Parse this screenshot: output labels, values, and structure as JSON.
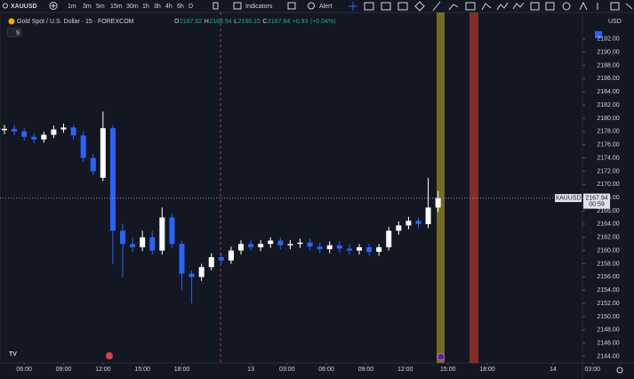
{
  "toolbar": {
    "symbol": "XAUUSD",
    "intervals": [
      "1m",
      "3m",
      "5m",
      "15m",
      "30m",
      "1h",
      "3h",
      "4h",
      "6h",
      "D"
    ],
    "indicators": "Indicators",
    "alert": "Alert"
  },
  "chart_data": {
    "type": "candlestick",
    "title": "Gold Spot / U.S. Dollar · 15 · FOREXCOM",
    "ohlc_legend": {
      "o_label": "O",
      "open": 2167.02,
      "h_label": "H",
      "high": 2168.94,
      "l_label": "L",
      "low": 2166.15,
      "c_label": "C",
      "close": 2167.94,
      "change": "+0.93",
      "change_pct": "(+0.04%)"
    },
    "indicator_count": 9,
    "currency": "USD",
    "last_price": {
      "symbol": "XAUUSD",
      "value": 2167.94,
      "countdown": "00:59"
    },
    "up_color": "#ffffff",
    "down_color": "#2962ff",
    "x": [
      0,
      3,
      6,
      9,
      12,
      15,
      18,
      21,
      24,
      27,
      30,
      33,
      36,
      39,
      42,
      45,
      48,
      51,
      54,
      57,
      60,
      63,
      66,
      69,
      72,
      75,
      78,
      81,
      84,
      87,
      90,
      93,
      96,
      99,
      102,
      105,
      108,
      111,
      114,
      117,
      120,
      123,
      126,
      129,
      132
    ],
    "open": [
      2178.2,
      2178.4,
      2178,
      2177.2,
      2176.8,
      2177.5,
      2178.3,
      2178.6,
      2177.4,
      2174,
      2171,
      2178.5,
      2163,
      2161,
      2160.5,
      2162,
      2160,
      2165,
      2161,
      2156.5,
      2156,
      2157.5,
      2159,
      2158.5,
      2160,
      2161,
      2160.5,
      2161,
      2161.5,
      2160.8,
      2161,
      2161.2,
      2160.6,
      2160.2,
      2160.8,
      2160.3,
      2160,
      2160.5,
      2159.8,
      2160.5,
      2163,
      2163.8,
      2164.5,
      2164,
      2166.5
    ],
    "high": [
      2179,
      2179,
      2178.6,
      2177.8,
      2178,
      2178.9,
      2179.2,
      2179,
      2178,
      2174.6,
      2181,
      2179,
      2164,
      2162,
      2163,
      2163,
      2166.5,
      2165.6,
      2161.5,
      2157,
      2158,
      2159.6,
      2159.6,
      2160.6,
      2161.6,
      2161.6,
      2161.6,
      2162,
      2162,
      2161.6,
      2161.8,
      2161.8,
      2161.2,
      2161.4,
      2161.4,
      2160.9,
      2161,
      2161,
      2161,
      2163.6,
      2164.4,
      2165.1,
      2165,
      2171,
      2169
    ],
    "low": [
      2177.6,
      2177.4,
      2176.6,
      2176.2,
      2176.3,
      2177,
      2177.8,
      2176.8,
      2173.4,
      2171.4,
      2170.5,
      2158,
      2156,
      2159.8,
      2159.9,
      2159.4,
      2159.4,
      2160.4,
      2154,
      2152,
      2155.4,
      2157,
      2158,
      2158,
      2159.4,
      2160,
      2159.9,
      2160.4,
      2160.2,
      2160.2,
      2160.4,
      2160,
      2159.6,
      2159.6,
      2159.7,
      2159.4,
      2159.4,
      2159.2,
      2159.2,
      2160,
      2162.4,
      2163.2,
      2163.4,
      2163.4,
      2165.8
    ],
    "close": [
      2178.4,
      2178,
      2177.2,
      2176.8,
      2177.5,
      2178.3,
      2178.6,
      2177.4,
      2174,
      2172,
      2178.5,
      2163,
      2161,
      2160.5,
      2162,
      2160,
      2165,
      2161,
      2156.5,
      2156,
      2157.5,
      2159,
      2158.5,
      2160,
      2161,
      2160.5,
      2161,
      2161.5,
      2160.8,
      2161,
      2161.2,
      2160.6,
      2160.2,
      2160.8,
      2160.3,
      2160,
      2160.5,
      2159.8,
      2160.5,
      2163,
      2163.8,
      2164.5,
      2164,
      2166.5,
      2167.94
    ],
    "xlim": [
      0,
      180
    ],
    "xticks": [
      {
        "value": 6,
        "label": "06:00"
      },
      {
        "value": 18,
        "label": "09:00"
      },
      {
        "value": 30,
        "label": "12:00"
      },
      {
        "value": 42,
        "label": "15:00"
      },
      {
        "value": 54,
        "label": "18:00"
      },
      {
        "value": 75,
        "label": "13"
      },
      {
        "value": 86,
        "label": "03:00"
      },
      {
        "value": 98,
        "label": "06:00"
      },
      {
        "value": 110,
        "label": "09:00"
      },
      {
        "value": 122,
        "label": "12:00"
      },
      {
        "value": 135,
        "label": "15:00"
      },
      {
        "value": 147,
        "label": "18:00"
      },
      {
        "value": 167,
        "label": "14"
      },
      {
        "value": 179,
        "label": "03:00"
      }
    ],
    "ylim": [
      2143,
      2196
    ],
    "yticks": [
      {
        "value": 2144,
        "label": "2144.00"
      },
      {
        "value": 2146,
        "label": "2146.00"
      },
      {
        "value": 2148,
        "label": "2148.00"
      },
      {
        "value": 2150,
        "label": "2150.00"
      },
      {
        "value": 2152,
        "label": "2152.00"
      },
      {
        "value": 2154,
        "label": "2154.00"
      },
      {
        "value": 2156,
        "label": "2156.00"
      },
      {
        "value": 2158,
        "label": "2158.00"
      },
      {
        "value": 2160,
        "label": "2160.00"
      },
      {
        "value": 2162,
        "label": "2162.00"
      },
      {
        "value": 2164,
        "label": "2164.00"
      },
      {
        "value": 2166,
        "label": "2166.00"
      },
      {
        "value": 2168,
        "label": "2168.00"
      },
      {
        "value": 2170,
        "label": "2170.00"
      },
      {
        "value": 2172,
        "label": "2172.00"
      },
      {
        "value": 2174,
        "label": "2174.00"
      },
      {
        "value": 2176,
        "label": "2176.00"
      },
      {
        "value": 2178,
        "label": "2178.00"
      },
      {
        "value": 2180,
        "label": "2180.00"
      },
      {
        "value": 2182,
        "label": "2182.00"
      },
      {
        "value": 2184,
        "label": "2184.00"
      },
      {
        "value": 2186,
        "label": "2186.00"
      },
      {
        "value": 2188,
        "label": "2188.00"
      },
      {
        "value": 2190,
        "label": "2190.00"
      },
      {
        "value": 2192,
        "label": "2192.00"
      }
    ]
  }
}
